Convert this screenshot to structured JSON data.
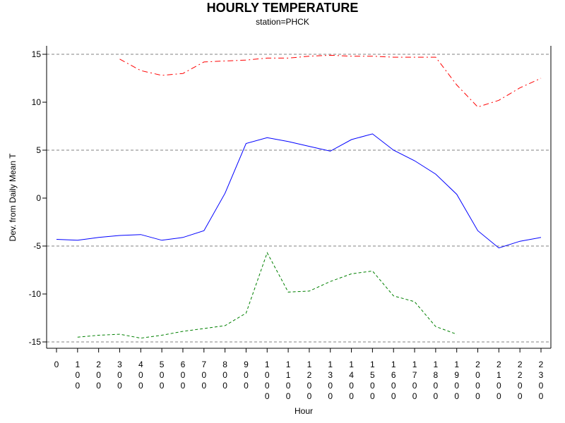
{
  "chart_data": {
    "type": "line",
    "title": "HOURLY TEMPERATURE",
    "subtitle": "station=PHCK",
    "xlabel": "Hour",
    "ylabel": "Dev. from Daily Mean T",
    "xlim": [
      0,
      23
    ],
    "ylim": [
      -15,
      15
    ],
    "x_ticks": [
      0,
      1,
      2,
      3,
      4,
      5,
      6,
      7,
      8,
      9,
      10,
      11,
      12,
      13,
      14,
      15,
      16,
      17,
      18,
      19,
      20,
      21,
      22,
      23
    ],
    "x_tick_labels": [
      "0",
      "100",
      "200",
      "300",
      "400",
      "500",
      "600",
      "700",
      "800",
      "900",
      "1000",
      "1100",
      "1200",
      "1300",
      "1400",
      "1500",
      "1600",
      "1700",
      "1800",
      "1900",
      "2000",
      "2100",
      "2200",
      "2300"
    ],
    "y_ticks": [
      -15,
      -10,
      -5,
      0,
      5,
      10,
      15
    ],
    "y_tick_labels": [
      "-15",
      "-10",
      "-5",
      "0",
      "5",
      "10",
      "15"
    ],
    "reference_lines": [
      -15,
      -5,
      5,
      15
    ],
    "series": [
      {
        "color": "#ff0000",
        "dash": "dashdot",
        "x": [
          3,
          4,
          5,
          6,
          7,
          8,
          9,
          10,
          11,
          12,
          13,
          14,
          15,
          16,
          17,
          18,
          19,
          20,
          21,
          22,
          23
        ],
        "values": [
          14.5,
          13.3,
          12.8,
          13.0,
          14.2,
          14.3,
          14.4,
          14.6,
          14.6,
          14.8,
          14.9,
          14.8,
          14.8,
          14.7,
          14.7,
          14.7,
          11.8,
          9.5,
          10.2,
          11.5,
          12.5
        ]
      },
      {
        "color": "#0000ff",
        "dash": "solid",
        "x": [
          0,
          1,
          2,
          3,
          4,
          5,
          6,
          7,
          8,
          9,
          10,
          11,
          12,
          13,
          14,
          15,
          16,
          17,
          18,
          19,
          20,
          21,
          22,
          23
        ],
        "values": [
          -4.3,
          -4.4,
          -4.1,
          -3.9,
          -3.8,
          -4.4,
          -4.1,
          -3.4,
          0.5,
          5.7,
          6.3,
          5.9,
          5.4,
          4.9,
          6.1,
          6.7,
          5.0,
          3.9,
          2.5,
          0.4,
          -3.4,
          -5.2,
          -4.5,
          -4.1
        ]
      },
      {
        "color": "#008000",
        "dash": "dashed",
        "x": [
          1,
          2,
          3,
          4,
          5,
          6,
          7,
          8,
          9,
          10,
          11,
          12,
          13,
          14,
          15,
          16,
          17,
          18,
          19
        ],
        "values": [
          -14.5,
          -14.3,
          -14.2,
          -14.6,
          -14.3,
          -13.9,
          -13.6,
          -13.3,
          -12.0,
          -5.7,
          -9.8,
          -9.7,
          -8.7,
          -7.9,
          -7.6,
          -10.2,
          -10.8,
          -13.4,
          -14.2
        ]
      }
    ]
  }
}
